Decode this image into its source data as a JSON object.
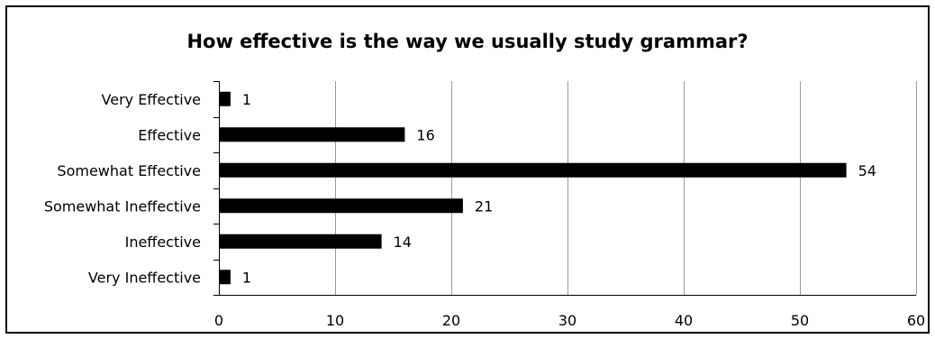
{
  "chart_data": {
    "type": "bar",
    "orientation": "horizontal",
    "title": "How effective is the way we usually study grammar?",
    "categories": [
      "Very Effective",
      "Effective",
      "Somewhat Effective",
      "Somewhat Ineffective",
      "Ineffective",
      "Very Ineffective"
    ],
    "values": [
      1,
      16,
      54,
      21,
      14,
      1
    ],
    "data_labels": [
      "1",
      "16",
      "54",
      "21",
      "14",
      "1"
    ],
    "xlim": [
      0,
      60
    ],
    "x_ticks": [
      0,
      10,
      20,
      30,
      40,
      50,
      60
    ],
    "x_tick_labels": [
      "0",
      "10",
      "20",
      "30",
      "40",
      "50",
      "60"
    ],
    "grid": "vertical",
    "legend": "none",
    "colors": {
      "bar": "#000000",
      "grid": "#9a9a9a",
      "axis": "#000000",
      "frame": "#000000"
    }
  }
}
